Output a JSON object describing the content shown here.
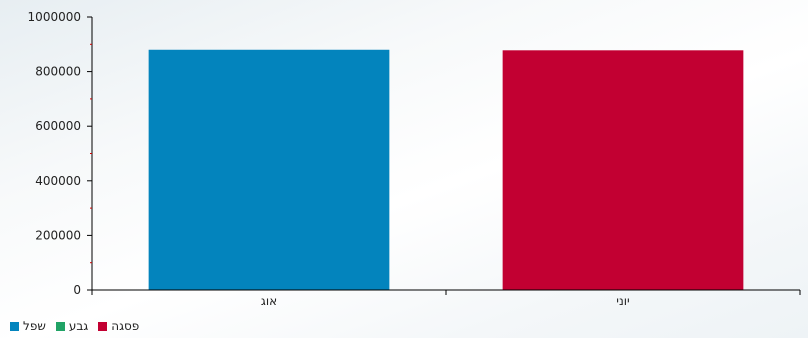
{
  "chart_data": {
    "type": "bar",
    "categories": [
      "אוג",
      "יוני"
    ],
    "values": [
      880000,
      878000
    ],
    "bar_colors": [
      "#0384bd",
      "#c20032"
    ],
    "ylim": [
      0,
      1000000
    ],
    "yticks": [
      "0",
      "200000",
      "400000",
      "600000",
      "800000",
      "1000000"
    ],
    "ytick_values": [
      0,
      200000,
      400000,
      600000,
      800000,
      1000000
    ],
    "grid": false,
    "legend_position": "bottom-left",
    "legend": [
      {
        "label": "שפל",
        "color": "#0384bd"
      },
      {
        "label": "גבע",
        "color": "#21a366"
      },
      {
        "label": "פסגה",
        "color": "#c20032"
      }
    ]
  },
  "colors": {
    "axis": "#000000",
    "minor_tick": "#cc0000"
  }
}
